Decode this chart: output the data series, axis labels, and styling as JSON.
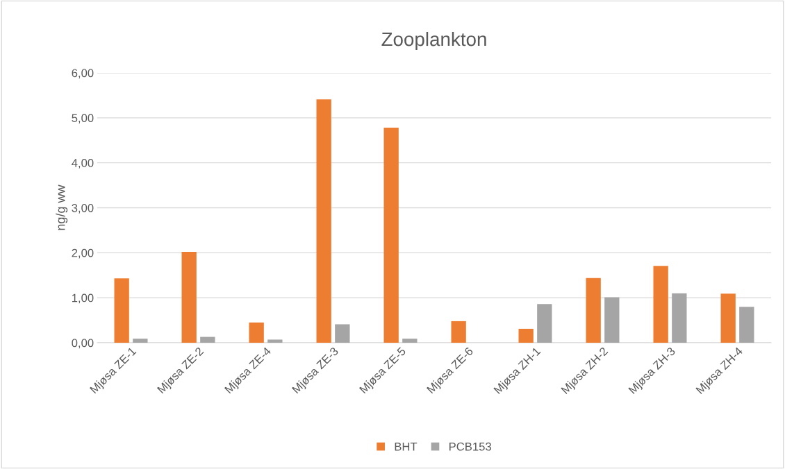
{
  "chart_data": {
    "type": "bar",
    "title": "Zooplankton",
    "ylabel": "ng/g ww",
    "categories": [
      "Mjøsa ZE-1",
      "Mjøsa ZE-2",
      "Mjøsa ZE-4",
      "Mjøsa ZE-3",
      "Mjøsa ZE-5",
      "Mjøsa ZE-6",
      "Mjøsa ZH-1",
      "Mjøsa ZH-2",
      "Mjøsa ZH-3",
      "Mjøsa ZH-4"
    ],
    "series": [
      {
        "name": "BHT",
        "color": "#ed7d31",
        "values": [
          1.43,
          2.02,
          0.45,
          5.41,
          4.78,
          0.48,
          0.31,
          1.44,
          1.71,
          1.09
        ]
      },
      {
        "name": "PCB153",
        "color": "#a5a5a5",
        "values": [
          0.09,
          0.13,
          0.07,
          0.41,
          0.09,
          null,
          0.86,
          1.01,
          1.1,
          0.8
        ]
      }
    ],
    "ylim": [
      0,
      6
    ],
    "yticks": [
      {
        "value": 0,
        "label": "0,00"
      },
      {
        "value": 1,
        "label": "1,00"
      },
      {
        "value": 2,
        "label": "2,00"
      },
      {
        "value": 3,
        "label": "3,00"
      },
      {
        "value": 4,
        "label": "4,00"
      },
      {
        "value": 5,
        "label": "5,00"
      },
      {
        "value": 6,
        "label": "6,00"
      }
    ],
    "grid": "y",
    "legend": "bottom"
  }
}
